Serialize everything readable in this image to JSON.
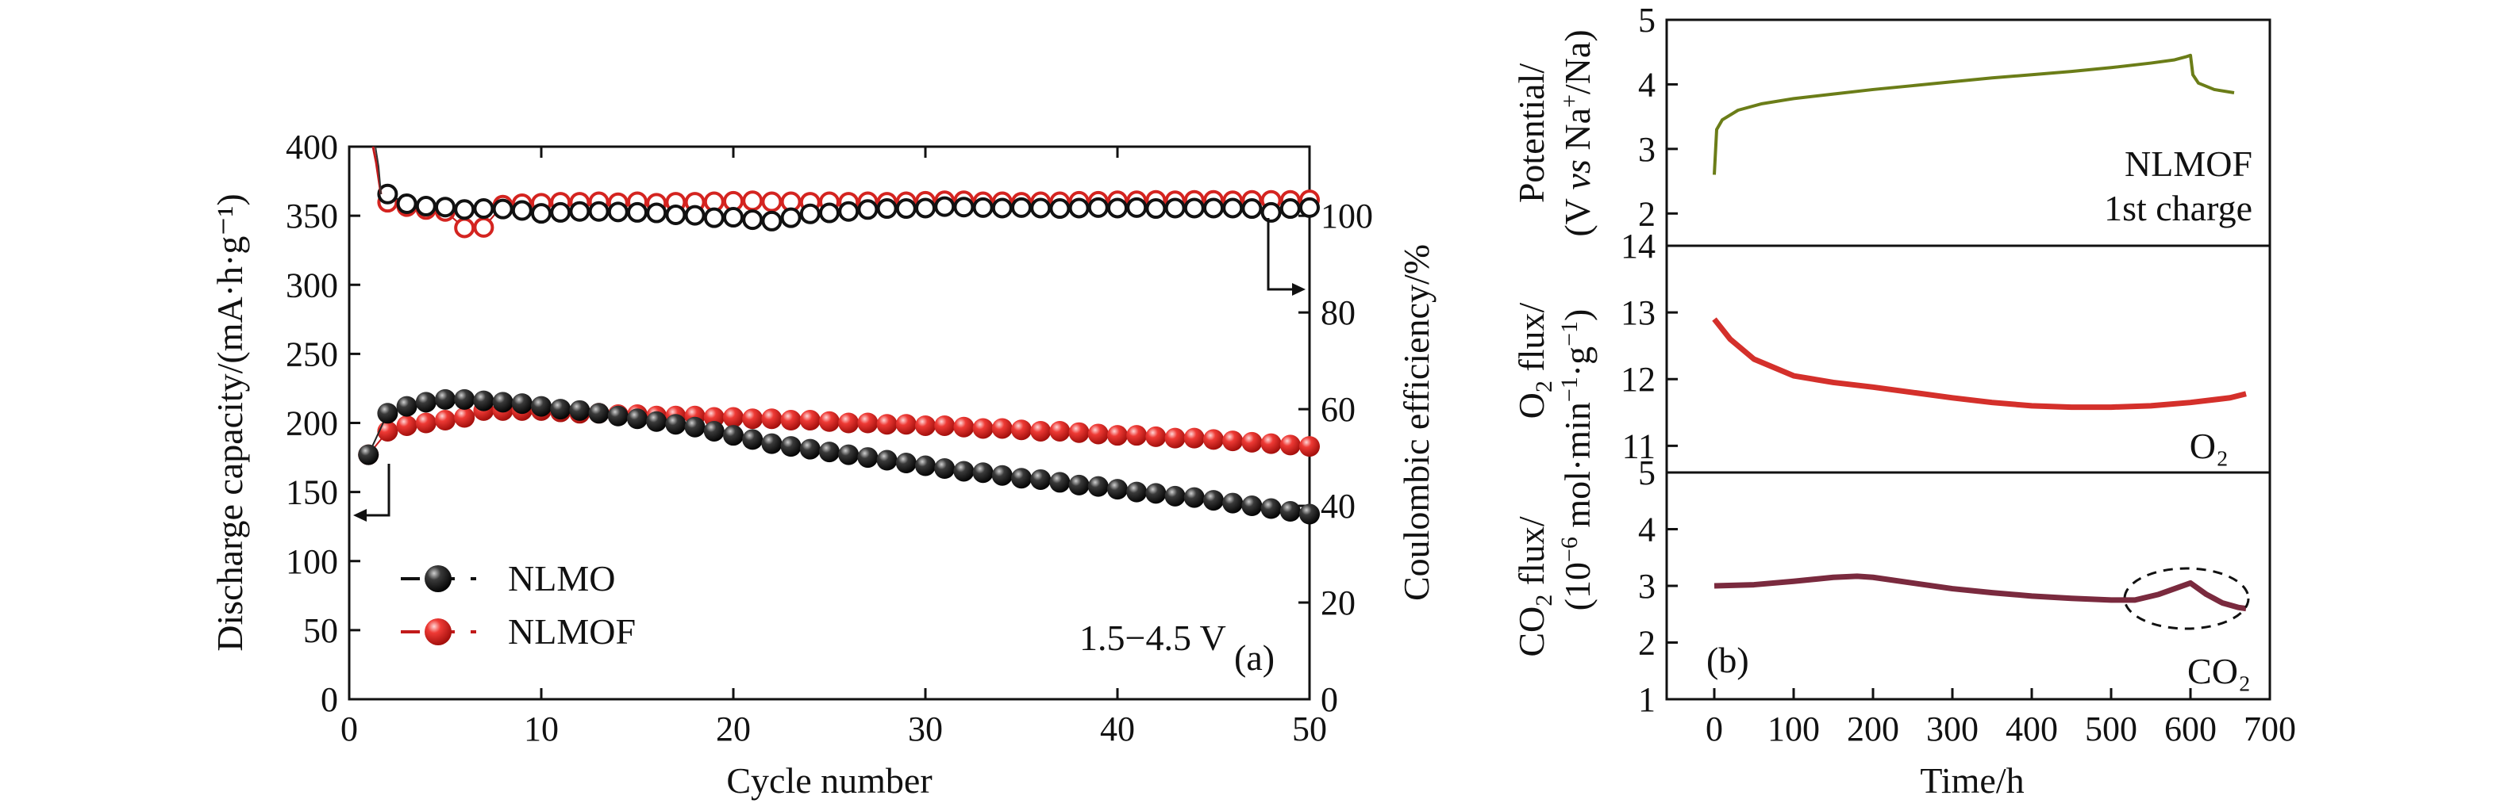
{
  "chart_data": [
    {
      "id": "a",
      "type": "scatter",
      "panel_label": "(a)",
      "xlabel": "Cycle number",
      "ylabel_left": "Discharge capacity/(mA·h·g⁻¹)",
      "ylabel_right": "Coulombic efficiency/%",
      "xlim": [
        0,
        50
      ],
      "ylim_left": [
        0,
        400
      ],
      "ylim_right": [
        0,
        114.3
      ],
      "xticks": [
        "0",
        "10",
        "20",
        "30",
        "40",
        "50"
      ],
      "yticks_left": [
        "0",
        "50",
        "100",
        "150",
        "200",
        "250",
        "300",
        "350",
        "400"
      ],
      "yticks_right": [
        "0",
        "20",
        "40",
        "60",
        "80",
        "100"
      ],
      "annotation": "1.5−4.5 V",
      "legend": [
        {
          "name": "NLMO",
          "color": "#111111"
        },
        {
          "name": "NLMOF",
          "color": "#e0201e"
        }
      ],
      "series": [
        {
          "name": "NLMO",
          "axis": "left",
          "x": [
            1,
            2,
            3,
            4,
            5,
            6,
            7,
            8,
            9,
            10,
            11,
            12,
            13,
            14,
            15,
            16,
            17,
            18,
            19,
            20,
            21,
            22,
            23,
            24,
            25,
            26,
            27,
            28,
            29,
            30,
            31,
            32,
            33,
            34,
            35,
            36,
            37,
            38,
            39,
            40,
            41,
            42,
            43,
            44,
            45,
            46,
            47,
            48,
            49,
            50
          ],
          "y": [
            177,
            207,
            212,
            215,
            217,
            217,
            216,
            215,
            214,
            212,
            210,
            209,
            207,
            205,
            203,
            201,
            199,
            197,
            194,
            191,
            188,
            185,
            183,
            181,
            179,
            177,
            175,
            173,
            171,
            169,
            167,
            165,
            164,
            162,
            160,
            159,
            157,
            155,
            154,
            152,
            150,
            149,
            147,
            146,
            144,
            142,
            140,
            138,
            136,
            134
          ]
        },
        {
          "name": "NLMOF",
          "axis": "left",
          "x": [
            1,
            2,
            3,
            4,
            5,
            6,
            7,
            8,
            9,
            10,
            11,
            12,
            13,
            14,
            15,
            16,
            17,
            18,
            19,
            20,
            21,
            22,
            23,
            24,
            25,
            26,
            27,
            28,
            29,
            30,
            31,
            32,
            33,
            34,
            35,
            36,
            37,
            38,
            39,
            40,
            41,
            42,
            43,
            44,
            45,
            46,
            47,
            48,
            49,
            50
          ],
          "y": [
            177,
            194,
            198,
            200,
            202,
            204,
            209,
            209,
            209,
            209,
            208,
            207,
            207,
            206,
            206,
            205,
            205,
            205,
            204,
            204,
            203,
            203,
            202,
            202,
            201,
            200,
            200,
            199,
            199,
            198,
            198,
            197,
            196,
            196,
            195,
            194,
            194,
            193,
            192,
            191,
            191,
            190,
            189,
            189,
            188,
            187,
            186,
            185,
            184,
            183
          ]
        },
        {
          "name": "NLMO",
          "axis": "right",
          "x": [
            2,
            3,
            4,
            5,
            6,
            7,
            8,
            9,
            10,
            11,
            12,
            13,
            14,
            15,
            16,
            17,
            18,
            19,
            20,
            21,
            22,
            23,
            24,
            25,
            26,
            27,
            28,
            29,
            30,
            31,
            32,
            33,
            34,
            35,
            36,
            37,
            38,
            39,
            40,
            41,
            42,
            43,
            44,
            45,
            46,
            47,
            48,
            49,
            50
          ],
          "y": [
            104.5,
            102.5,
            102,
            101.8,
            101.3,
            101.5,
            101.4,
            101.1,
            100.5,
            100.7,
            100.9,
            100.9,
            100.8,
            100.7,
            100.6,
            100.2,
            100.1,
            99.6,
            99.7,
            99.2,
            98.9,
            99.6,
            100.4,
            100.6,
            100.9,
            101.3,
            101.5,
            101.5,
            101.6,
            101.9,
            101.8,
            101.7,
            101.6,
            101.7,
            101.6,
            101.5,
            101.6,
            101.7,
            101.6,
            101.7,
            101.5,
            101.6,
            101.6,
            101.6,
            101.6,
            101.5,
            100.7,
            101.5,
            101.7
          ]
        },
        {
          "name": "NLMOF",
          "axis": "right",
          "x": [
            2,
            3,
            4,
            5,
            6,
            7,
            8,
            9,
            10,
            11,
            12,
            13,
            14,
            15,
            16,
            17,
            18,
            19,
            20,
            21,
            22,
            23,
            24,
            25,
            26,
            27,
            28,
            29,
            30,
            31,
            32,
            33,
            34,
            35,
            36,
            37,
            38,
            39,
            40,
            41,
            42,
            43,
            44,
            45,
            46,
            47,
            48,
            49,
            50
          ],
          "y": [
            102.8,
            101.9,
            101.3,
            100.9,
            97.5,
            97.6,
            102.2,
            102.5,
            102.6,
            102.8,
            102.8,
            102.9,
            102.7,
            102.9,
            102.6,
            102.8,
            102.8,
            102.9,
            103,
            103.1,
            102.9,
            102.9,
            102.8,
            102.9,
            102.8,
            102.9,
            102.8,
            102.9,
            103,
            103.1,
            103.1,
            102.9,
            102.9,
            102.8,
            102.9,
            102.9,
            103,
            103,
            103.1,
            103.1,
            103.2,
            103.1,
            103.2,
            103.2,
            103.1,
            103.2,
            103.2,
            103.2,
            103.3
          ]
        }
      ]
    },
    {
      "id": "b",
      "type": "line",
      "panel_label": "(b)",
      "xlabel": "Time/h",
      "xlim": [
        -60,
        700
      ],
      "xticks": [
        "0",
        "100",
        "200",
        "300",
        "400",
        "500",
        "600",
        "700"
      ],
      "subplots": [
        {
          "name": "potential",
          "ylabel": "Potential/ (V vs Na⁺/Na)",
          "ylim": [
            1.5,
            5
          ],
          "yticks": [
            "2",
            "3",
            "4",
            "5"
          ],
          "annotation": [
            "NLMOF",
            "1st charge"
          ],
          "color": "#6b7d18",
          "x": [
            0,
            3,
            10,
            30,
            60,
            100,
            150,
            200,
            250,
            300,
            350,
            400,
            450,
            500,
            550,
            580,
            595,
            600,
            603,
            610,
            630,
            655
          ],
          "y": [
            2.6,
            3.3,
            3.45,
            3.6,
            3.7,
            3.78,
            3.85,
            3.92,
            3.98,
            4.04,
            4.1,
            4.15,
            4.2,
            4.26,
            4.33,
            4.38,
            4.43,
            4.45,
            4.15,
            4.02,
            3.92,
            3.87
          ]
        },
        {
          "name": "O2 flux",
          "ylabel": "O₂ flux/ (10⁻⁶ mol·min⁻¹·g⁻¹)",
          "ylim": [
            10.6,
            14
          ],
          "yticks": [
            "11",
            "12",
            "13",
            "14"
          ],
          "annotation": "O₂",
          "color": "#d4302b",
          "x": [
            0,
            20,
            50,
            100,
            150,
            200,
            250,
            300,
            350,
            400,
            450,
            500,
            550,
            600,
            650,
            670
          ],
          "y": [
            12.9,
            12.6,
            12.3,
            12.05,
            11.95,
            11.88,
            11.8,
            11.72,
            11.65,
            11.6,
            11.58,
            11.58,
            11.6,
            11.65,
            11.72,
            11.78
          ]
        },
        {
          "name": "CO2 flux",
          "ylabel": "CO₂ flux/",
          "ylim": [
            1,
            5
          ],
          "yticks": [
            "1",
            "2",
            "3",
            "4",
            "5"
          ],
          "annotation": "CO₂",
          "color": "#7a2a3e",
          "x": [
            0,
            50,
            100,
            150,
            180,
            200,
            250,
            300,
            350,
            400,
            450,
            500,
            530,
            560,
            580,
            600,
            620,
            640,
            660,
            670
          ],
          "y": [
            3.0,
            3.02,
            3.08,
            3.15,
            3.17,
            3.15,
            3.05,
            2.95,
            2.88,
            2.82,
            2.78,
            2.75,
            2.75,
            2.85,
            2.95,
            3.05,
            2.85,
            2.7,
            2.62,
            2.6
          ]
        }
      ]
    }
  ]
}
